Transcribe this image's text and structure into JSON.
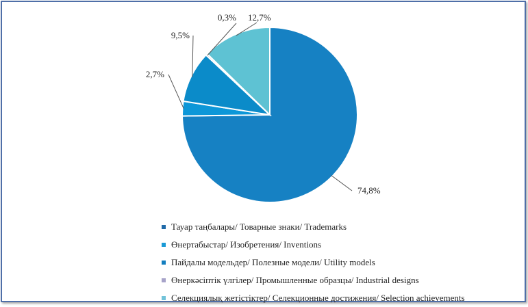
{
  "chart_data": {
    "type": "pie",
    "categories": [
      "Тауар таңбалары/ Товарные знаки/ Trademarks",
      "Өнертабыстар/ Изобретения/ Inventions",
      "Пайдалы модельдер/ Полезные модели/ Utility models",
      "Өнеркәсіптік үлгілер/ Промышленные образцы/ Industrial designs",
      "Селекциялық жетістіктер/ Селекционные достижения/ Selection achievements"
    ],
    "values": [
      74.8,
      2.7,
      9.5,
      0.3,
      12.7
    ],
    "value_labels": [
      "74,8%",
      "2,7%",
      "9,5%",
      "0,3%",
      "12,7%"
    ],
    "colors": [
      "#1681c3",
      "#0d97d8",
      "#0b8bc9",
      "#a8aeb8",
      "#5ec2d3"
    ],
    "legend_colors": [
      "#1f6aa8",
      "#1a9ad6",
      "#137ebf",
      "#a7a3c9",
      "#72c3d9"
    ],
    "legend_position": "bottom",
    "title": "",
    "xlabel": "",
    "ylabel": ""
  }
}
